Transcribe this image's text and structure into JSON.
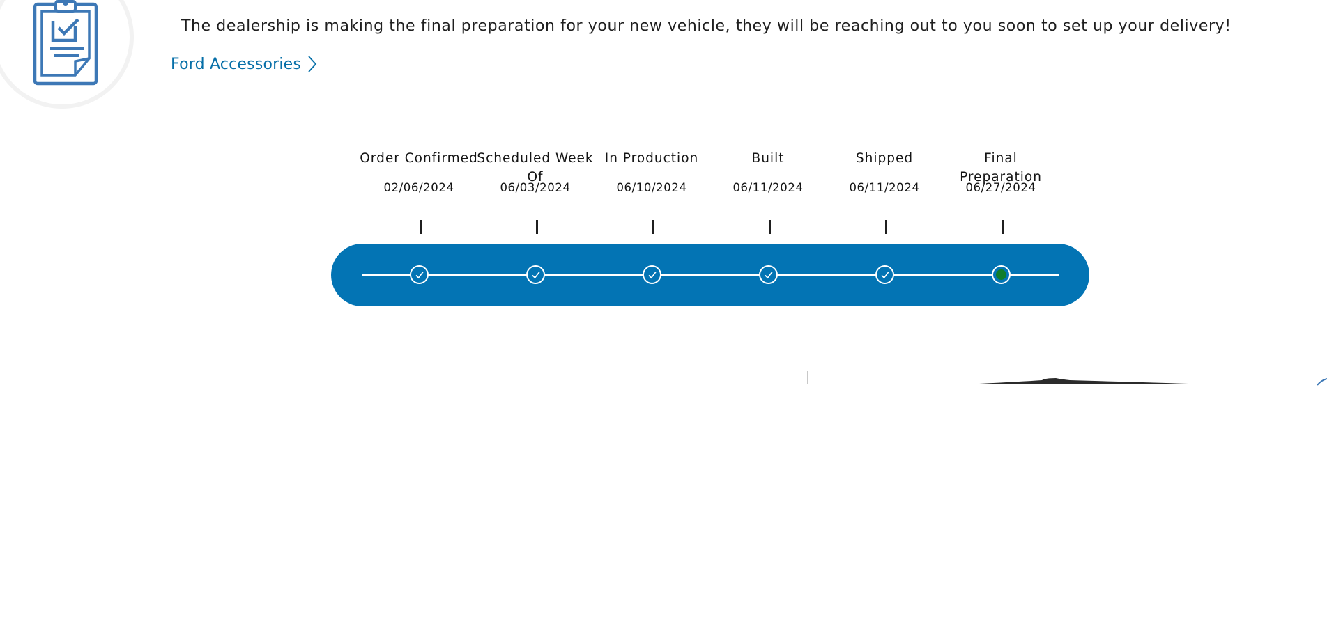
{
  "header": {
    "icon": "clipboard-check-icon",
    "message": "The dealership is making the final preparation for your new vehicle, they will be reaching out to you soon to set up your delivery!",
    "accessories_link": "Ford Accessories",
    "link_icon": "chevron-right-icon"
  },
  "tracker": {
    "stages": [
      {
        "name": "Order Confirmed",
        "date": "02/06/2024",
        "status": "complete"
      },
      {
        "name": "Scheduled Week Of",
        "date": "06/03/2024",
        "status": "complete"
      },
      {
        "name": "In Production",
        "date": "06/10/2024",
        "status": "complete"
      },
      {
        "name": "Built",
        "date": "06/11/2024",
        "status": "complete"
      },
      {
        "name": "Shipped",
        "date": "06/11/2024",
        "status": "complete"
      },
      {
        "name": "Final Preparation",
        "date": "06/27/2024",
        "status": "current"
      }
    ],
    "complete_icon": "check-icon",
    "current_icon": "current-dot-icon"
  },
  "colors": {
    "brand_blue": "#0374b4",
    "link_blue": "#066fa8",
    "icon_blue": "#3d78b6",
    "current_green": "#0f7d2a"
  }
}
